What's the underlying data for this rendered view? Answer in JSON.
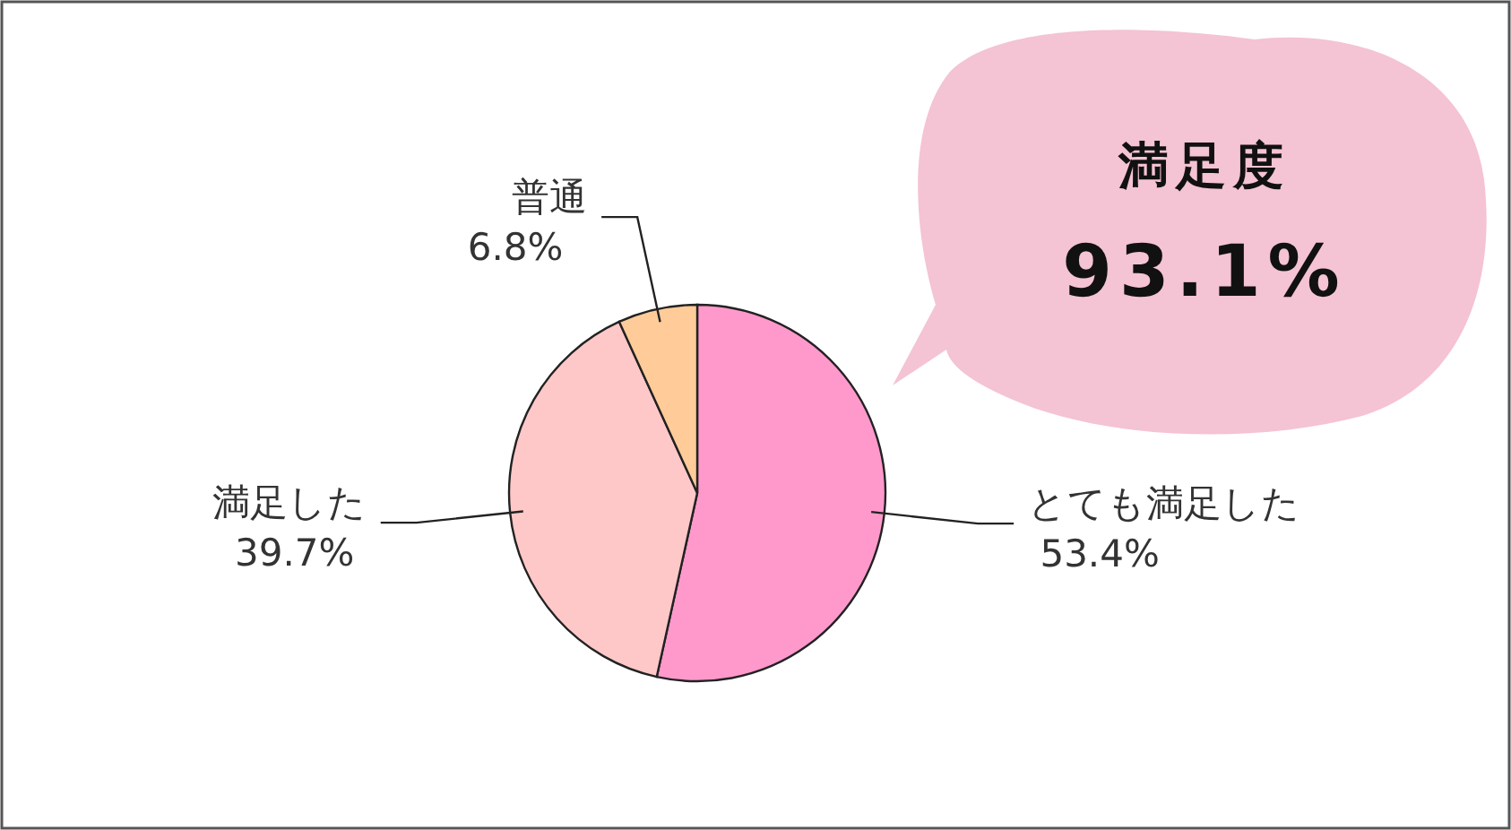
{
  "chart_data": {
    "type": "pie",
    "categories": [
      "とても満足した",
      "満足した",
      "普通"
    ],
    "values": [
      53.4,
      39.7,
      6.8
    ],
    "colors": [
      "#ff99cc",
      "#ffc8c8",
      "#ffcc99"
    ],
    "value_labels": [
      "53.4%",
      "39.7%",
      "6.8%"
    ],
    "annotations": [
      "満足度",
      "93.1%"
    ]
  }
}
